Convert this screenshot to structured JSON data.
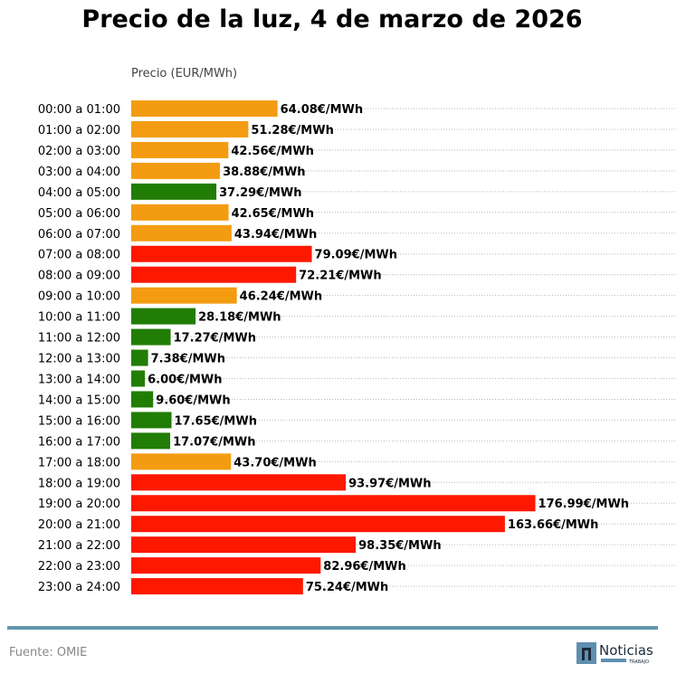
{
  "chart_data": {
    "type": "bar",
    "orientation": "horizontal",
    "title": "Precio de la luz, 4 de marzo de 2026",
    "xlabel": "Precio (EUR/MWh)",
    "value_suffix": "€/MWh",
    "grid": "horizontal dotted",
    "categories": [
      "00:00 a 01:00",
      "01:00 a 02:00",
      "02:00 a 03:00",
      "03:00 a 04:00",
      "04:00 a 05:00",
      "05:00 a 06:00",
      "06:00 a 07:00",
      "07:00 a 08:00",
      "08:00 a 09:00",
      "09:00 a 10:00",
      "10:00 a 11:00",
      "11:00 a 12:00",
      "12:00 a 13:00",
      "13:00 a 14:00",
      "14:00 a 15:00",
      "15:00 a 16:00",
      "16:00 a 17:00",
      "17:00 a 18:00",
      "18:00 a 19:00",
      "19:00 a 20:00",
      "20:00 a 21:00",
      "21:00 a 22:00",
      "22:00 a 23:00",
      "23:00 a 24:00"
    ],
    "values": [
      64.08,
      51.28,
      42.56,
      38.88,
      37.29,
      42.65,
      43.94,
      79.09,
      72.21,
      46.24,
      28.18,
      17.27,
      7.38,
      6.0,
      9.6,
      17.65,
      17.07,
      43.7,
      93.97,
      176.99,
      163.66,
      98.35,
      82.96,
      75.24
    ],
    "levels": [
      "medio",
      "medio",
      "medio",
      "medio",
      "bajo",
      "medio",
      "medio",
      "alto",
      "alto",
      "medio",
      "bajo",
      "bajo",
      "bajo",
      "bajo",
      "bajo",
      "bajo",
      "bajo",
      "medio",
      "alto",
      "alto",
      "alto",
      "alto",
      "alto",
      "alto"
    ],
    "xlim": [
      0,
      239
    ]
  },
  "colors": {
    "bajo": "#217d05",
    "medio": "#f39c12",
    "alto": "#fe1800",
    "rule": "#6297ad"
  },
  "footer": {
    "source": "Fuente: OMIE",
    "logo_text": "Noticias",
    "logo_sub": "TRABAJO"
  }
}
